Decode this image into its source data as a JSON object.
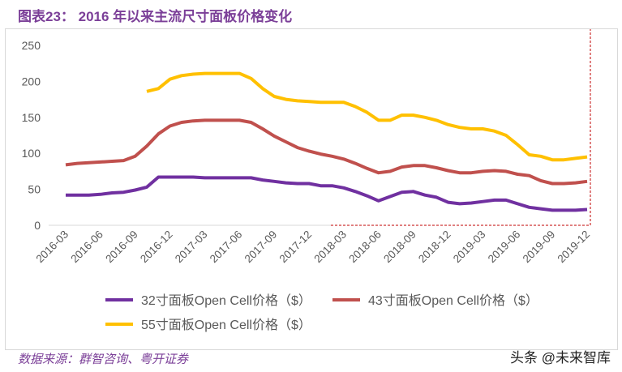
{
  "title": "图表23：  2016 年以来主流尺寸面板价格变化",
  "source": "数据来源：群智咨询、粤开证券",
  "watermark": "头条 @未来智库",
  "chart_data": {
    "type": "line",
    "title": "",
    "xlabel": "",
    "ylabel": "",
    "ylim": [
      0,
      250
    ],
    "yticks": [
      0,
      50,
      100,
      150,
      200,
      250
    ],
    "grid": false,
    "legend_position": "bottom",
    "x": [
      "2016-03",
      "2016-04",
      "2016-05",
      "2016-06",
      "2016-07",
      "2016-08",
      "2016-09",
      "2016-10",
      "2016-11",
      "2016-12",
      "2017-01",
      "2017-02",
      "2017-03",
      "2017-04",
      "2017-05",
      "2017-06",
      "2017-07",
      "2017-08",
      "2017-09",
      "2017-10",
      "2017-11",
      "2017-12",
      "2018-01",
      "2018-02",
      "2018-03",
      "2018-04",
      "2018-05",
      "2018-06",
      "2018-07",
      "2018-08",
      "2018-09",
      "2018-10",
      "2018-11",
      "2018-12",
      "2019-01",
      "2019-02",
      "2019-03",
      "2019-04",
      "2019-05",
      "2019-06",
      "2019-07",
      "2019-08",
      "2019-09",
      "2019-10",
      "2019-11",
      "2019-12"
    ],
    "xtick_labels": [
      "2016-03",
      "2016-06",
      "2016-09",
      "2016-12",
      "2017-03",
      "2017-06",
      "2017-09",
      "2017-12",
      "2018-03",
      "2018-06",
      "2018-09",
      "2018-12",
      "2019-03",
      "2019-06",
      "2019-09",
      "2019-12"
    ],
    "series": [
      {
        "name": "32寸面板Open Cell价格（$）",
        "color": "#7030a0",
        "values": [
          42,
          42,
          42,
          43,
          45,
          46,
          49,
          53,
          67,
          67,
          67,
          67,
          66,
          66,
          66,
          66,
          66,
          63,
          61,
          59,
          58,
          58,
          55,
          55,
          52,
          47,
          41,
          34,
          40,
          46,
          47,
          42,
          39,
          32,
          30,
          31,
          33,
          35,
          35,
          30,
          25,
          23,
          21,
          21,
          21,
          22
        ]
      },
      {
        "name": "43寸面板Open Cell价格（$）",
        "color": "#c0504d",
        "values": [
          84,
          86,
          87,
          88,
          89,
          90,
          96,
          110,
          127,
          138,
          143,
          145,
          146,
          146,
          146,
          146,
          143,
          134,
          124,
          116,
          108,
          103,
          99,
          96,
          92,
          86,
          79,
          73,
          75,
          81,
          83,
          83,
          80,
          76,
          73,
          73,
          75,
          76,
          75,
          71,
          69,
          62,
          58,
          58,
          59,
          61
        ]
      },
      {
        "name": "55寸面板Open Cell价格（$）",
        "color": "#ffc000",
        "values": [
          null,
          null,
          null,
          null,
          null,
          null,
          null,
          186,
          190,
          203,
          208,
          210,
          211,
          211,
          211,
          211,
          204,
          190,
          179,
          175,
          173,
          172,
          171,
          171,
          171,
          165,
          157,
          146,
          146,
          153,
          153,
          150,
          146,
          140,
          136,
          134,
          134,
          131,
          125,
          112,
          98,
          96,
          91,
          91,
          93,
          95
        ]
      }
    ]
  }
}
